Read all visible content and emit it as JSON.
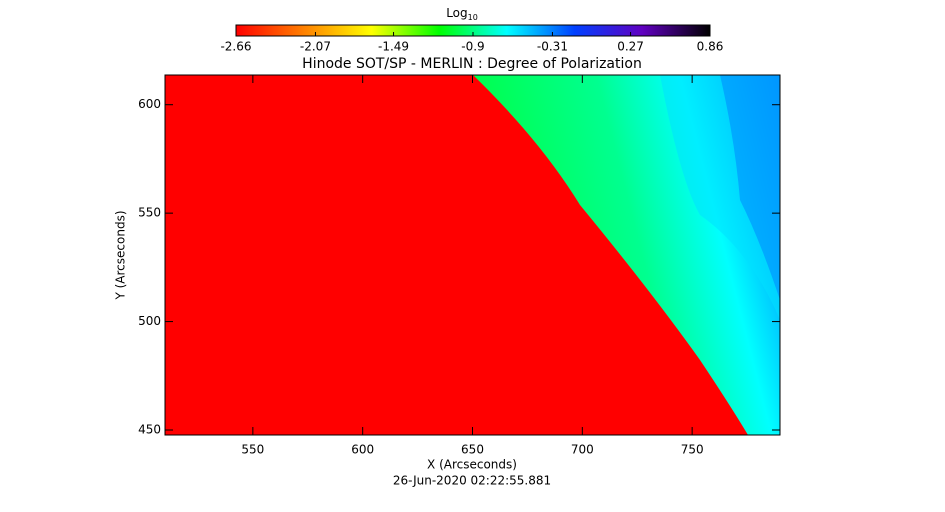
{
  "chart_data": {
    "type": "image",
    "title": "Hinode SOT/SP - MERLIN : Degree of Polarization",
    "subtitle": "26-Jun-2020 02:22:55.881",
    "x_label": "X (Arcseconds)",
    "y_label": "Y (Arcseconds)",
    "xlim": [
      510,
      790
    ],
    "xticks": [
      550,
      600,
      650,
      700,
      750
    ],
    "ylim": [
      447.7,
      613.7
    ],
    "yticks": [
      450,
      500,
      550,
      600
    ],
    "colorbar_label": "Log",
    "colorbar_label_sub": "10",
    "clim": [
      -2.66,
      0.86
    ],
    "cticks": [
      -2.66,
      -2.07,
      -1.49,
      -0.9,
      -0.31,
      0.27,
      0.86
    ],
    "colormap": [
      "#ff0000",
      "#ff8000",
      "#ffff00",
      "#00ff00",
      "#00ffff",
      "#0040ff",
      "#6000c0",
      "#000000"
    ]
  }
}
